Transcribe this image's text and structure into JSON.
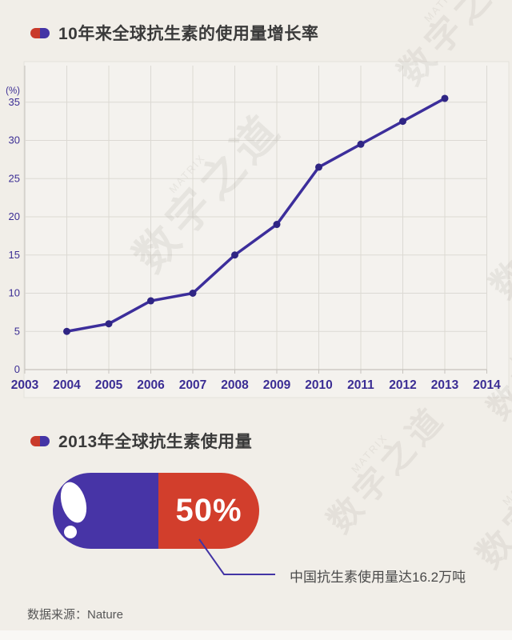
{
  "colors": {
    "background": "#f1eee8",
    "panel": "#f4f2ee",
    "panel_border": "#e4e1db",
    "grid": "#dcd9d3",
    "axis": "#c6c3bd",
    "line": "#3c2e9b",
    "point": "#2f2584",
    "tick_label": "#3b2d94",
    "pill_purple": "#4734a6",
    "pill_red": "#d23e2c",
    "callout_line": "#4334a5"
  },
  "section1": {
    "title": "10年来全球抗生素的使用量增长率"
  },
  "section2": {
    "title": "2013年全球抗生素使用量",
    "pill_percent": "50%",
    "annotation": "中国抗生素使用量达16.2万吨"
  },
  "footer": {
    "source_label": "数据来源：Nature"
  },
  "watermark": {
    "small": "MATRIX",
    "large": "数字之道"
  },
  "chart_data": {
    "type": "line",
    "title": "10年来全球抗生素的使用量增长率",
    "ylabel": "(%)",
    "x": [
      2004,
      2005,
      2006,
      2007,
      2008,
      2009,
      2010,
      2011,
      2012,
      2013
    ],
    "values": [
      5,
      6,
      9,
      10,
      15,
      19,
      26.5,
      29.5,
      32.5,
      35.5
    ],
    "x_ticks": [
      2003,
      2004,
      2005,
      2006,
      2007,
      2008,
      2009,
      2010,
      2011,
      2012,
      2013,
      2014
    ],
    "y_ticks": [
      0,
      5,
      10,
      15,
      20,
      25,
      30,
      35
    ],
    "xlim": [
      2003,
      2014
    ],
    "ylim": [
      0,
      40
    ],
    "grid": true,
    "legend": null
  }
}
